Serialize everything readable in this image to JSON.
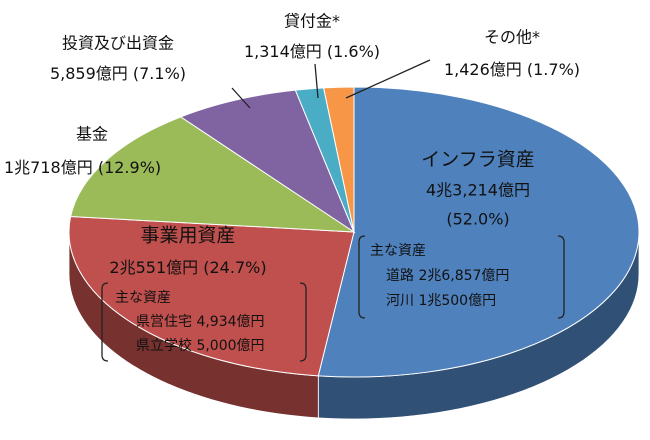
{
  "chart_data": {
    "type": "pie",
    "categories": [
      "インフラ資産",
      "事業用資産",
      "基金",
      "投資及び出資金",
      "貸付金*",
      "その他*"
    ],
    "amounts": [
      "4兆3,214億円",
      "2兆551億円",
      "1兆718億円",
      "5,859億円",
      "1,314億円",
      "1,426億円"
    ],
    "values": [
      52.0,
      24.7,
      12.9,
      7.1,
      1.6,
      1.7
    ],
    "value_labels": [
      "(52.0%)",
      "(24.7%)",
      "(12.9%)",
      "(7.1%)",
      "(1.6%)",
      "(1.7%)"
    ],
    "colors": [
      "#4f81bd",
      "#c0504d",
      "#9bbb59",
      "#8064a2",
      "#4bacc6",
      "#f79646"
    ],
    "infra_note": {
      "title": "主な資産",
      "items": [
        "道路 2兆6,857億円",
        "河川 1兆500億円"
      ]
    },
    "business_note": {
      "title": "主な資産",
      "items": [
        "県営住宅 4,934億円",
        "県立学校 5,000億円"
      ]
    }
  }
}
